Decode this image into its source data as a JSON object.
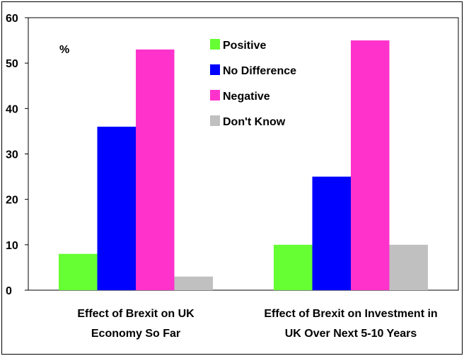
{
  "chart_data": {
    "type": "bar",
    "unit_label": "%",
    "categories": [
      [
        "Effect of Brexit on UK",
        "Economy So Far"
      ],
      [
        "Effect of Brexit on Investment in",
        "UK Over Next 5-10 Years"
      ]
    ],
    "series": [
      {
        "name": "Positive",
        "color": "#66ff33",
        "values": [
          8,
          10
        ]
      },
      {
        "name": "No Difference",
        "color": "#0000ff",
        "values": [
          36,
          25
        ]
      },
      {
        "name": "Negative",
        "color": "#ff33cc",
        "values": [
          53,
          55
        ]
      },
      {
        "name": "Don't Know",
        "color": "#c0c0c0",
        "values": [
          3,
          10
        ]
      }
    ],
    "ylim": [
      0,
      60
    ],
    "yticks": [
      0,
      10,
      20,
      30,
      40,
      50,
      60
    ],
    "grid": false,
    "legend_position": "top-center"
  }
}
